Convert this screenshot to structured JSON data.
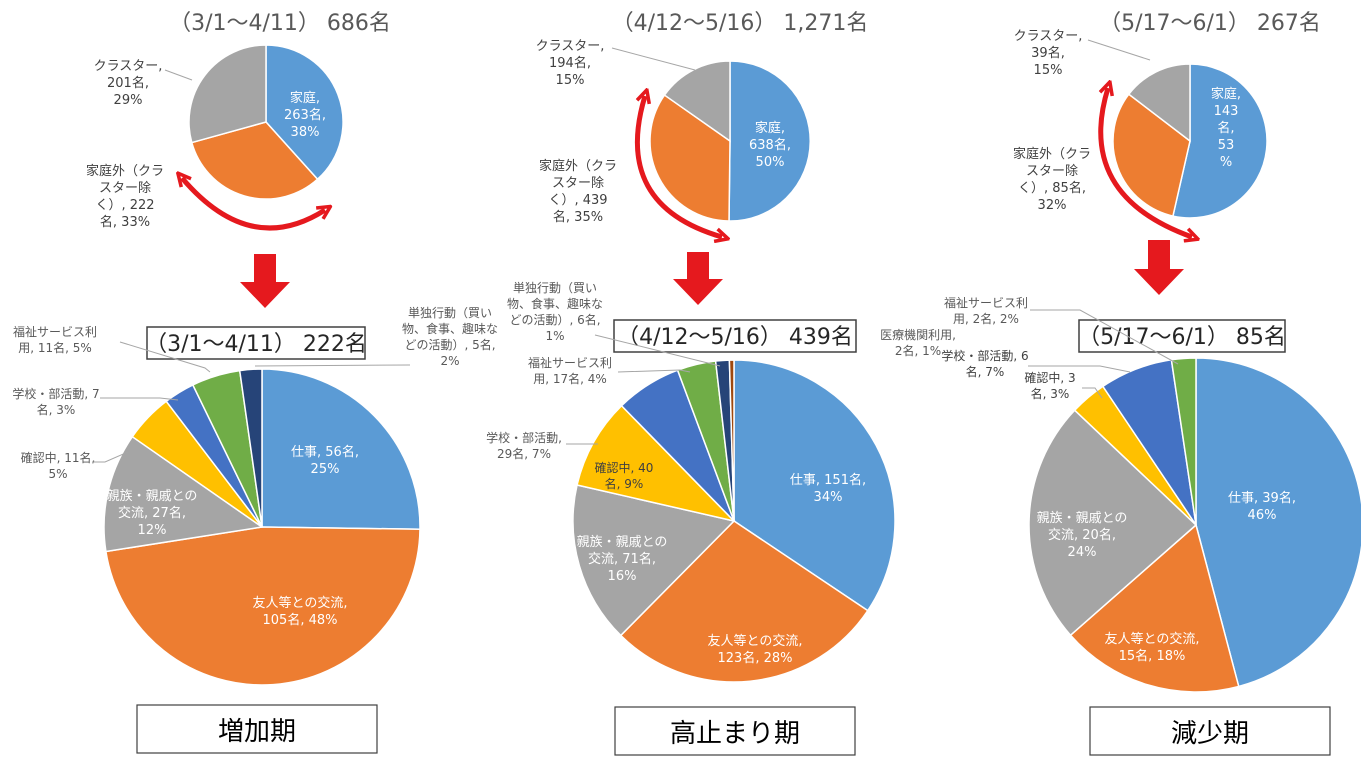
{
  "colors": {
    "blue": "#5B9BD5",
    "orange": "#ED7D31",
    "gray": "#A5A5A5",
    "yellow": "#FFC000",
    "royal": "#4472C4",
    "green": "#70AD47",
    "navy": "#264478",
    "brown": "#9E480E",
    "arrow": "#E5191E"
  },
  "chart_data": [
    {
      "type": "pie",
      "title": "（3/1～4/11）686名",
      "slices": [
        {
          "label": "家庭, 263名, 38%",
          "value": 263,
          "color": "blue"
        },
        {
          "label": "家庭外（クラスター除く）, 222名, 33%",
          "value": 222,
          "color": "orange"
        },
        {
          "label": "クラスター, 201名, 29%",
          "value": 201,
          "color": "gray"
        }
      ]
    },
    {
      "type": "pie",
      "title": "（4/12～5/16）1,271名",
      "slices": [
        {
          "label": "家庭, 638名, 50%",
          "value": 638,
          "color": "blue"
        },
        {
          "label": "家庭外（クラスター除く）, 439名, 35%",
          "value": 439,
          "color": "orange"
        },
        {
          "label": "クラスター, 194名, 15%",
          "value": 194,
          "color": "gray"
        }
      ]
    },
    {
      "type": "pie",
      "title": "（5/17～6/1）267名",
      "slices": [
        {
          "label": "家庭, 143名, 53%",
          "value": 143,
          "color": "blue"
        },
        {
          "label": "家庭外（クラスター除く）, 85名, 32%",
          "value": 85,
          "color": "orange"
        },
        {
          "label": "クラスター, 39名, 15%",
          "value": 39,
          "color": "gray"
        }
      ]
    },
    {
      "type": "pie",
      "title": "（3/1～4/11） 222名",
      "period": "増加期",
      "slices": [
        {
          "label": "仕事, 56名, 25%",
          "value": 56,
          "color": "blue"
        },
        {
          "label": "友人等との交流, 105名, 48%",
          "value": 105,
          "color": "orange"
        },
        {
          "label": "親族・親戚との交流, 27名, 12%",
          "value": 27,
          "color": "gray"
        },
        {
          "label": "確認中, 11名, 5%",
          "value": 11,
          "color": "yellow"
        },
        {
          "label": "学校・部活動, 7名, 3%",
          "value": 7,
          "color": "royal"
        },
        {
          "label": "福祉サービス利用, 11名, 5%",
          "value": 11,
          "color": "green"
        },
        {
          "label": "単独行動（買い物、食事、趣味などの活動）, 5名, 2%",
          "value": 5,
          "color": "navy"
        }
      ]
    },
    {
      "type": "pie",
      "title": "（4/12～5/16） 439名",
      "period": "高止まり期",
      "slices": [
        {
          "label": "仕事, 151名, 34%",
          "value": 151,
          "color": "blue"
        },
        {
          "label": "友人等との交流, 123名, 28%",
          "value": 123,
          "color": "orange"
        },
        {
          "label": "親族・親戚との交流, 71名, 16%",
          "value": 71,
          "color": "gray"
        },
        {
          "label": "確認中, 40名, 9%",
          "value": 40,
          "color": "yellow"
        },
        {
          "label": "学校・部活動, 29名, 7%",
          "value": 29,
          "color": "royal"
        },
        {
          "label": "福祉サービス利用, 17名, 4%",
          "value": 17,
          "color": "green"
        },
        {
          "label": "単独行動（買い物、食事、趣味などの活動）, 6名, 1%",
          "value": 6,
          "color": "navy"
        },
        {
          "label": "医療機関利用, 2名, 1%",
          "value": 2,
          "color": "brown"
        }
      ]
    },
    {
      "type": "pie",
      "title": "（5/17～6/1） 85名",
      "period": "減少期",
      "slices": [
        {
          "label": "仕事, 39名, 46%",
          "value": 39,
          "color": "blue"
        },
        {
          "label": "友人等との交流, 15名, 18%",
          "value": 15,
          "color": "orange"
        },
        {
          "label": "親族・親戚との交流, 20名, 24%",
          "value": 20,
          "color": "gray"
        },
        {
          "label": "確認中, 3名, 3%",
          "value": 3,
          "color": "yellow"
        },
        {
          "label": "学校・部活動, 6名, 7%",
          "value": 6,
          "color": "royal"
        },
        {
          "label": "福祉サービス利用, 2名, 2%",
          "value": 2,
          "color": "green"
        }
      ]
    }
  ],
  "text": {
    "c1": {
      "title": "（3/1～4/11） 686名",
      "kat": [
        "家庭,",
        "263名,",
        "38%"
      ],
      "cl": [
        "クラスター,",
        "201名,",
        "29%"
      ],
      "gai": [
        "家庭外（クラ",
        "スター除",
        "く）, 222",
        "名, 33%"
      ]
    },
    "c2": {
      "title": "（4/12～5/16） 1,271名",
      "kat": [
        "家庭,",
        "638名,",
        "50%"
      ],
      "cl": [
        "クラスター,",
        "194名,",
        "15%"
      ],
      "gai": [
        "家庭外（クラ",
        "スター除",
        "く）, 439",
        "名, 35%"
      ]
    },
    "c3": {
      "title": "（5/17～6/1） 267名",
      "kat": [
        "家庭,",
        "143",
        "名,",
        "53",
        "%"
      ],
      "cl": [
        "クラスター,",
        "39名,",
        "15%"
      ],
      "gai": [
        "家庭外（クラ",
        "スター除",
        "く）, 85名,",
        "32%"
      ]
    },
    "b1": {
      "title": "（3/1～4/11） 222名",
      "period": "増加期",
      "shigoto": [
        "仕事, 56名,",
        "25%"
      ],
      "yujin": [
        "友人等との交流,",
        "105名, 48%"
      ],
      "shinzoku": [
        "親族・親戚との",
        "交流, 27名,",
        "12%"
      ],
      "kakunin": [
        "確認中, 11名,",
        "5%"
      ],
      "gakko": [
        "学校・部活動, 7",
        "名, 3%"
      ],
      "fukushi": [
        "福祉サービス利",
        "用, 11名, 5%"
      ],
      "tandoku": [
        "単独行動（買い",
        "物、食事、趣味な",
        "どの活動）, 5名,",
        "2%"
      ]
    },
    "b2": {
      "title": "（4/12～5/16） 439名",
      "period": "高止まり期",
      "shigoto": [
        "仕事, 151名,",
        "34%"
      ],
      "yujin": [
        "友人等との交流,",
        "123名, 28%"
      ],
      "shinzoku": [
        "親族・親戚との",
        "交流, 71名,",
        "16%"
      ],
      "kakunin": [
        "確認中, 40",
        "名, 9%"
      ],
      "gakko": [
        "学校・部活動,",
        "29名, 7%"
      ],
      "fukushi": [
        "福祉サービス利",
        "用, 17名, 4%"
      ],
      "tandoku": [
        "単独行動（買い",
        "物、食事、趣味な",
        "どの活動）, 6名,",
        "1%"
      ],
      "iryo": [
        "医療機関利用,",
        "2名, 1%"
      ]
    },
    "b3": {
      "title": "（5/17～6/1） 85名",
      "period": "減少期",
      "shigoto": [
        "仕事, 39名,",
        "46%"
      ],
      "yujin": [
        "友人等との交流,",
        "15名, 18%"
      ],
      "shinzoku": [
        "親族・親戚との",
        "交流, 20名,",
        "24%"
      ],
      "kakunin": [
        "確認中, 3",
        "名, 3%"
      ],
      "gakko": [
        "学校・部活動, 6",
        "名, 7%"
      ],
      "fukushi": [
        "福祉サービス利",
        "用, 2名, 2%"
      ]
    }
  }
}
